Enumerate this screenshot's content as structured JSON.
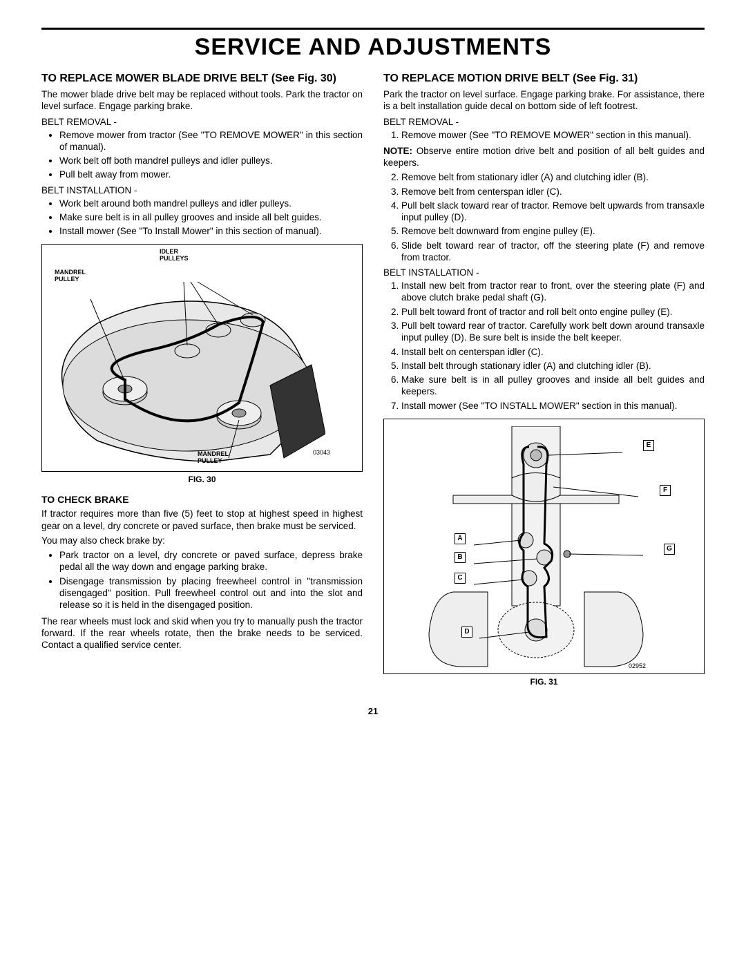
{
  "page": {
    "title": "SERVICE AND ADJUSTMENTS",
    "number": "21"
  },
  "left": {
    "s1": {
      "heading": "TO REPLACE MOWER BLADE DRIVE BELT (See Fig. 30)",
      "intro": "The mower blade drive belt may be replaced without tools. Park the tractor on level surface. Engage parking brake.",
      "removal_label": "BELT REMOVAL -",
      "removal": [
        "Remove mower from tractor (See \"TO REMOVE MOWER\" in this section of manual).",
        "Work belt off both mandrel pulleys and idler pulleys.",
        "Pull belt away from mower."
      ],
      "install_label": "BELT INSTALLATION -",
      "install": [
        "Work belt around both mandrel pulleys and idler pulleys.",
        "Make sure belt is in all pulley grooves and inside all belt guides.",
        "Install mower (See \"To Install Mower\" in this section of manual)."
      ]
    },
    "fig30": {
      "caption": "FIG. 30",
      "label_idler": "IDLER PULLEYS",
      "label_mandrel1": "MANDREL PULLEY",
      "label_mandrel2": "MANDREL PULLEY",
      "partno": "03043",
      "colors": {
        "stroke": "#000000",
        "fill": "#d9d9d9",
        "light": "#f0f0f0"
      }
    },
    "s2": {
      "heading": "TO CHECK BRAKE",
      "p1": "If tractor requires more than five (5) feet to stop at highest speed in highest gear on a level, dry concrete or paved surface, then brake must be serviced.",
      "p2": "You may also check brake by:",
      "bullets": [
        "Park tractor on a level, dry concrete or paved surface, depress brake pedal all the way down and engage parking brake.",
        "Disengage transmission by placing freewheel control in \"transmission disengaged\" position. Pull freewheel control out and into the slot and release so it is held in the disengaged position."
      ],
      "p3": "The rear wheels must lock and skid when you try to manually push the tractor forward. If the rear wheels rotate, then the brake needs to be serviced. Contact a qualified service center."
    }
  },
  "right": {
    "s1": {
      "heading": "TO REPLACE MOTION DRIVE BELT (See Fig. 31)",
      "intro": "Park the tractor on level surface.  Engage parking brake. For assistance, there is a belt installation guide decal on bottom side of left footrest.",
      "removal_label": "BELT REMOVAL -",
      "removal": [
        "Remove mower (See \"TO REMOVE MOWER\" section in this manual)."
      ],
      "note": "NOTE: Observe entire motion drive belt and position of all belt guides and keepers.",
      "removal2": [
        "Remove belt from stationary idler (A) and clutching idler (B).",
        "Remove belt from centerspan idler (C).",
        "Pull belt slack toward rear of tractor.  Remove belt upwards from transaxle input pulley (D).",
        "Remove belt downward from engine pulley (E).",
        "Slide belt toward rear of tractor, off the steering plate (F) and remove from tractor."
      ],
      "install_label": "BELT INSTALLATION -",
      "install": [
        "Install new belt from tractor rear to front, over the steering plate (F) and above clutch brake pedal shaft (G).",
        "Pull belt toward front of tractor and roll belt onto engine pulley (E).",
        "Pull belt toward rear of tractor. Carefully work belt down around transaxle input pulley (D). Be sure belt is inside the belt keeper.",
        "Install belt on centerspan idler (C).",
        "Install belt through stationary idler (A) and clutching idler (B).",
        "Make sure belt is in all pulley grooves and inside all belt guides and keepers.",
        "Install mower (See \"TO INSTALL MOWER\" section in this manual)."
      ]
    },
    "fig31": {
      "caption": "FIG. 31",
      "labels": {
        "A": "A",
        "B": "B",
        "C": "C",
        "D": "D",
        "E": "E",
        "F": "F",
        "G": "G"
      },
      "partno": "02952",
      "colors": {
        "stroke": "#000000",
        "fill": "#e5e5e5"
      }
    }
  }
}
